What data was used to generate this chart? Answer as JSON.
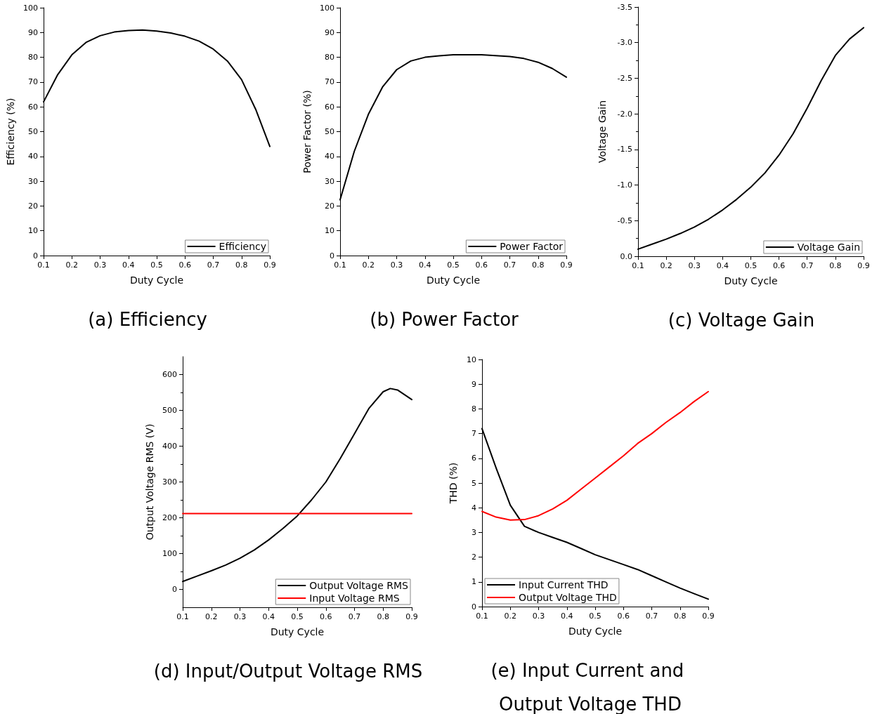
{
  "chart_data": [
    {
      "type": "line",
      "title": "(a) Efficiency",
      "xlabel": "Duty Cycle",
      "ylabel": "Efficiency (%)",
      "x": [
        0.1,
        0.15,
        0.2,
        0.25,
        0.3,
        0.35,
        0.4,
        0.45,
        0.5,
        0.55,
        0.6,
        0.65,
        0.7,
        0.75,
        0.8,
        0.85,
        0.9
      ],
      "series": [
        {
          "name": "Efficiency",
          "color": "#000000",
          "values": [
            62,
            73,
            81,
            86,
            88.7,
            90.2,
            90.8,
            91,
            90.6,
            89.8,
            88.5,
            86.5,
            83.3,
            78.5,
            71,
            59,
            44
          ]
        }
      ],
      "xlim": [
        0.1,
        0.9
      ],
      "xticks": [
        0.1,
        0.2,
        0.3,
        0.4,
        0.5,
        0.6,
        0.7,
        0.8,
        0.9
      ],
      "ylim": [
        0,
        100
      ],
      "yticks": [
        0,
        10,
        20,
        30,
        40,
        50,
        60,
        70,
        80,
        90,
        100
      ],
      "grid": false,
      "legend": "bottom right",
      "marker": "none",
      "line_style": "solid"
    },
    {
      "type": "line",
      "title": "(b) Power Factor",
      "xlabel": "Duty Cycle",
      "ylabel": "Power Factor (%)",
      "x": [
        0.1,
        0.15,
        0.2,
        0.25,
        0.3,
        0.35,
        0.4,
        0.45,
        0.5,
        0.55,
        0.6,
        0.65,
        0.7,
        0.75,
        0.8,
        0.85,
        0.9
      ],
      "series": [
        {
          "name": "Power Factor",
          "color": "#000000",
          "values": [
            22.5,
            42,
            57,
            68,
            75,
            78.5,
            80,
            80.6,
            81,
            81,
            81,
            80.7,
            80.3,
            79.5,
            78,
            75.5,
            72
          ]
        }
      ],
      "xlim": [
        0.1,
        0.9
      ],
      "xticks": [
        0.1,
        0.2,
        0.3,
        0.4,
        0.5,
        0.6,
        0.7,
        0.8,
        0.9
      ],
      "ylim": [
        0,
        100
      ],
      "yticks": [
        0,
        10,
        20,
        30,
        40,
        50,
        60,
        70,
        80,
        90,
        100
      ],
      "grid": false,
      "legend": "bottom right",
      "marker": "none",
      "line_style": "solid"
    },
    {
      "type": "line",
      "title": "(c) Voltage Gain",
      "xlabel": "Duty Cycle",
      "ylabel": "Voltage Gain",
      "x": [
        0.1,
        0.15,
        0.2,
        0.25,
        0.3,
        0.35,
        0.4,
        0.45,
        0.5,
        0.55,
        0.6,
        0.65,
        0.7,
        0.75,
        0.8,
        0.85,
        0.9
      ],
      "series": [
        {
          "name": "Voltage Gain",
          "color": "#000000",
          "values": [
            -0.1,
            -0.17,
            -0.24,
            -0.32,
            -0.41,
            -0.52,
            -0.65,
            -0.8,
            -0.97,
            -1.17,
            -1.42,
            -1.72,
            -2.08,
            -2.47,
            -2.82,
            -3.05,
            -3.21
          ]
        }
      ],
      "xlim": [
        0.1,
        0.9
      ],
      "xticks": [
        0.1,
        0.2,
        0.3,
        0.4,
        0.5,
        0.6,
        0.7,
        0.8,
        0.9
      ],
      "ylim": [
        0,
        -3.5
      ],
      "yticks": [
        {
          "value": 0,
          "label": "0.0"
        },
        {
          "value": -0.5,
          "label": "-0.5"
        },
        {
          "value": -1,
          "label": "-1.0"
        },
        {
          "value": -1.5,
          "label": "-1.5"
        },
        {
          "value": -2,
          "label": "-2.0"
        },
        {
          "value": -2.5,
          "label": "-2.5"
        },
        {
          "value": -3,
          "label": "-3.0"
        },
        {
          "value": -3.5,
          "label": "-3.5"
        }
      ],
      "grid": false,
      "legend": "bottom right",
      "marker": "none",
      "line_style": "solid"
    },
    {
      "type": "line",
      "title": "(d) Input/Output Voltage RMS",
      "xlabel": "Duty Cycle",
      "ylabel": "Output Voltage RMS (V)",
      "series": [
        {
          "name": "Output Voltage RMS",
          "color": "#000000",
          "x": [
            0.1,
            0.15,
            0.2,
            0.25,
            0.3,
            0.35,
            0.4,
            0.45,
            0.5,
            0.55,
            0.6,
            0.65,
            0.7,
            0.75,
            0.8,
            0.825,
            0.85,
            0.9
          ],
          "values": [
            22,
            37,
            52,
            68,
            87,
            110,
            138,
            170,
            205,
            250,
            300,
            365,
            435,
            505,
            552,
            561,
            557,
            530
          ]
        },
        {
          "name": "Input Voltage RMS",
          "color": "#ff0000",
          "x": [
            0.1,
            0.9
          ],
          "values": [
            212,
            212
          ]
        }
      ],
      "xlim": [
        0.1,
        0.9
      ],
      "xticks": [
        0.1,
        0.2,
        0.3,
        0.4,
        0.5,
        0.6,
        0.7,
        0.8,
        0.9
      ],
      "ylim": [
        -50,
        650
      ],
      "yticks": [
        0,
        100,
        200,
        300,
        400,
        500,
        600
      ],
      "grid": false,
      "legend": "bottom right",
      "marker": "none",
      "line_style": "solid"
    },
    {
      "type": "line",
      "title": "(e) Input Current and Output Voltage THD",
      "xlabel": "Duty Cycle",
      "ylabel": "THD (%)",
      "x": [
        0.1,
        0.15,
        0.2,
        0.25,
        0.3,
        0.35,
        0.4,
        0.45,
        0.5,
        0.55,
        0.6,
        0.65,
        0.7,
        0.75,
        0.8,
        0.85,
        0.9
      ],
      "series": [
        {
          "name": "Input Current THD",
          "color": "#000000",
          "values": [
            7.2,
            5.6,
            4.1,
            3.25,
            3.0,
            2.8,
            2.6,
            2.35,
            2.1,
            1.9,
            1.7,
            1.5,
            1.25,
            1.0,
            0.75,
            0.52,
            0.3
          ]
        },
        {
          "name": "Output Voltage THD",
          "color": "#ff0000",
          "values": [
            3.85,
            3.62,
            3.5,
            3.52,
            3.68,
            3.95,
            4.3,
            4.75,
            5.2,
            5.65,
            6.1,
            6.6,
            7.0,
            7.45,
            7.85,
            8.3,
            8.7
          ]
        }
      ],
      "xlim": [
        0.1,
        0.9
      ],
      "xticks": [
        0.1,
        0.2,
        0.3,
        0.4,
        0.5,
        0.6,
        0.7,
        0.8,
        0.9
      ],
      "ylim": [
        0,
        10
      ],
      "yticks": [
        0,
        1,
        2,
        3,
        4,
        5,
        6,
        7,
        8,
        9,
        10
      ],
      "grid": false,
      "legend": "bottom left",
      "marker": "none",
      "line_style": "solid"
    }
  ]
}
